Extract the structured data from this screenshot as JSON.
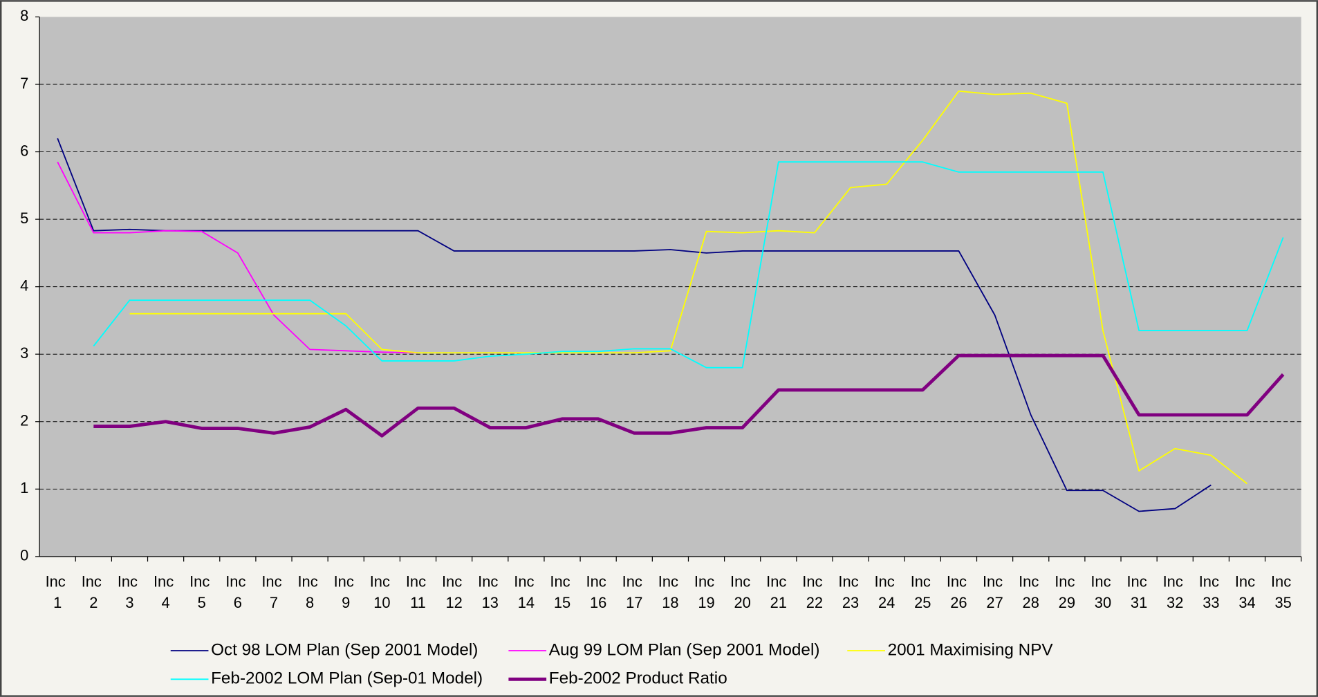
{
  "chart_data": {
    "type": "line",
    "categories": [
      "Inc 1",
      "Inc 2",
      "Inc 3",
      "Inc 4",
      "Inc 5",
      "Inc 6",
      "Inc 7",
      "Inc 8",
      "Inc 9",
      "Inc 10",
      "Inc 11",
      "Inc 12",
      "Inc 13",
      "Inc 14",
      "Inc 15",
      "Inc 16",
      "Inc 17",
      "Inc 18",
      "Inc 19",
      "Inc 20",
      "Inc 21",
      "Inc 22",
      "Inc 23",
      "Inc 24",
      "Inc 25",
      "Inc 26",
      "Inc 27",
      "Inc 28",
      "Inc 29",
      "Inc 30",
      "Inc 31",
      "Inc 32",
      "Inc 33",
      "Inc 34",
      "Inc 35"
    ],
    "series": [
      {
        "name": "Oct 98 LOM Plan (Sep 2001 Model)",
        "color": "#000080",
        "width": 1.5,
        "values": [
          6.2,
          4.83,
          4.85,
          4.83,
          4.83,
          4.83,
          4.83,
          4.83,
          4.83,
          4.83,
          4.83,
          4.53,
          4.53,
          4.53,
          4.53,
          4.53,
          4.53,
          4.55,
          4.5,
          4.53,
          4.53,
          4.53,
          4.53,
          4.53,
          4.53,
          4.53,
          3.58,
          2.1,
          0.98,
          0.98,
          0.67,
          0.71,
          1.06,
          null,
          null
        ]
      },
      {
        "name": "Aug 99 LOM Plan (Sep 2001 Model)",
        "color": "#ff00ff",
        "width": 1.5,
        "values": [
          5.85,
          4.8,
          4.8,
          4.83,
          4.82,
          4.5,
          3.58,
          3.07,
          3.05,
          3.03,
          3.02,
          null,
          null,
          null,
          null,
          null,
          null,
          null,
          null,
          null,
          null,
          null,
          null,
          null,
          null,
          null,
          null,
          null,
          null,
          null,
          null,
          null,
          null,
          null,
          null
        ]
      },
      {
        "name": "2001 Maximising NPV",
        "color": "#ffff00",
        "width": 1.5,
        "values": [
          null,
          null,
          3.6,
          3.6,
          3.6,
          3.6,
          3.6,
          3.6,
          3.6,
          3.07,
          3.02,
          3.02,
          3.02,
          3.02,
          3.02,
          3.02,
          3.02,
          3.05,
          4.82,
          4.8,
          4.83,
          4.8,
          5.47,
          5.52,
          6.17,
          6.9,
          6.85,
          6.87,
          6.72,
          3.35,
          1.27,
          1.6,
          1.5,
          1.08,
          null
        ]
      },
      {
        "name": "Feb-2002 LOM Plan (Sep-01 Model)",
        "color": "#00ffff",
        "width": 1.5,
        "values": [
          null,
          3.12,
          3.8,
          3.8,
          3.8,
          3.8,
          3.8,
          3.8,
          3.42,
          2.9,
          2.9,
          2.9,
          2.97,
          3.0,
          3.04,
          3.04,
          3.08,
          3.08,
          2.8,
          2.8,
          5.85,
          5.85,
          5.85,
          5.85,
          5.85,
          5.7,
          5.7,
          5.7,
          5.7,
          5.7,
          3.35,
          3.35,
          3.35,
          3.35,
          4.73
        ]
      },
      {
        "name": "Feb-2002 Product Ratio",
        "color": "#800080",
        "width": 4,
        "values": [
          null,
          1.93,
          1.93,
          2.0,
          1.9,
          1.9,
          1.83,
          1.92,
          2.18,
          1.79,
          2.2,
          2.2,
          1.91,
          1.91,
          2.04,
          2.04,
          1.83,
          1.83,
          1.91,
          1.91,
          2.47,
          2.47,
          2.47,
          2.47,
          2.47,
          2.98,
          2.98,
          2.98,
          2.98,
          2.98,
          2.1,
          2.1,
          2.1,
          2.1,
          2.7
        ]
      }
    ],
    "ylim": [
      0,
      8
    ],
    "yticks": [
      0,
      1,
      2,
      3,
      4,
      5,
      6,
      7,
      8
    ],
    "grid": true,
    "legend": "bottom"
  }
}
